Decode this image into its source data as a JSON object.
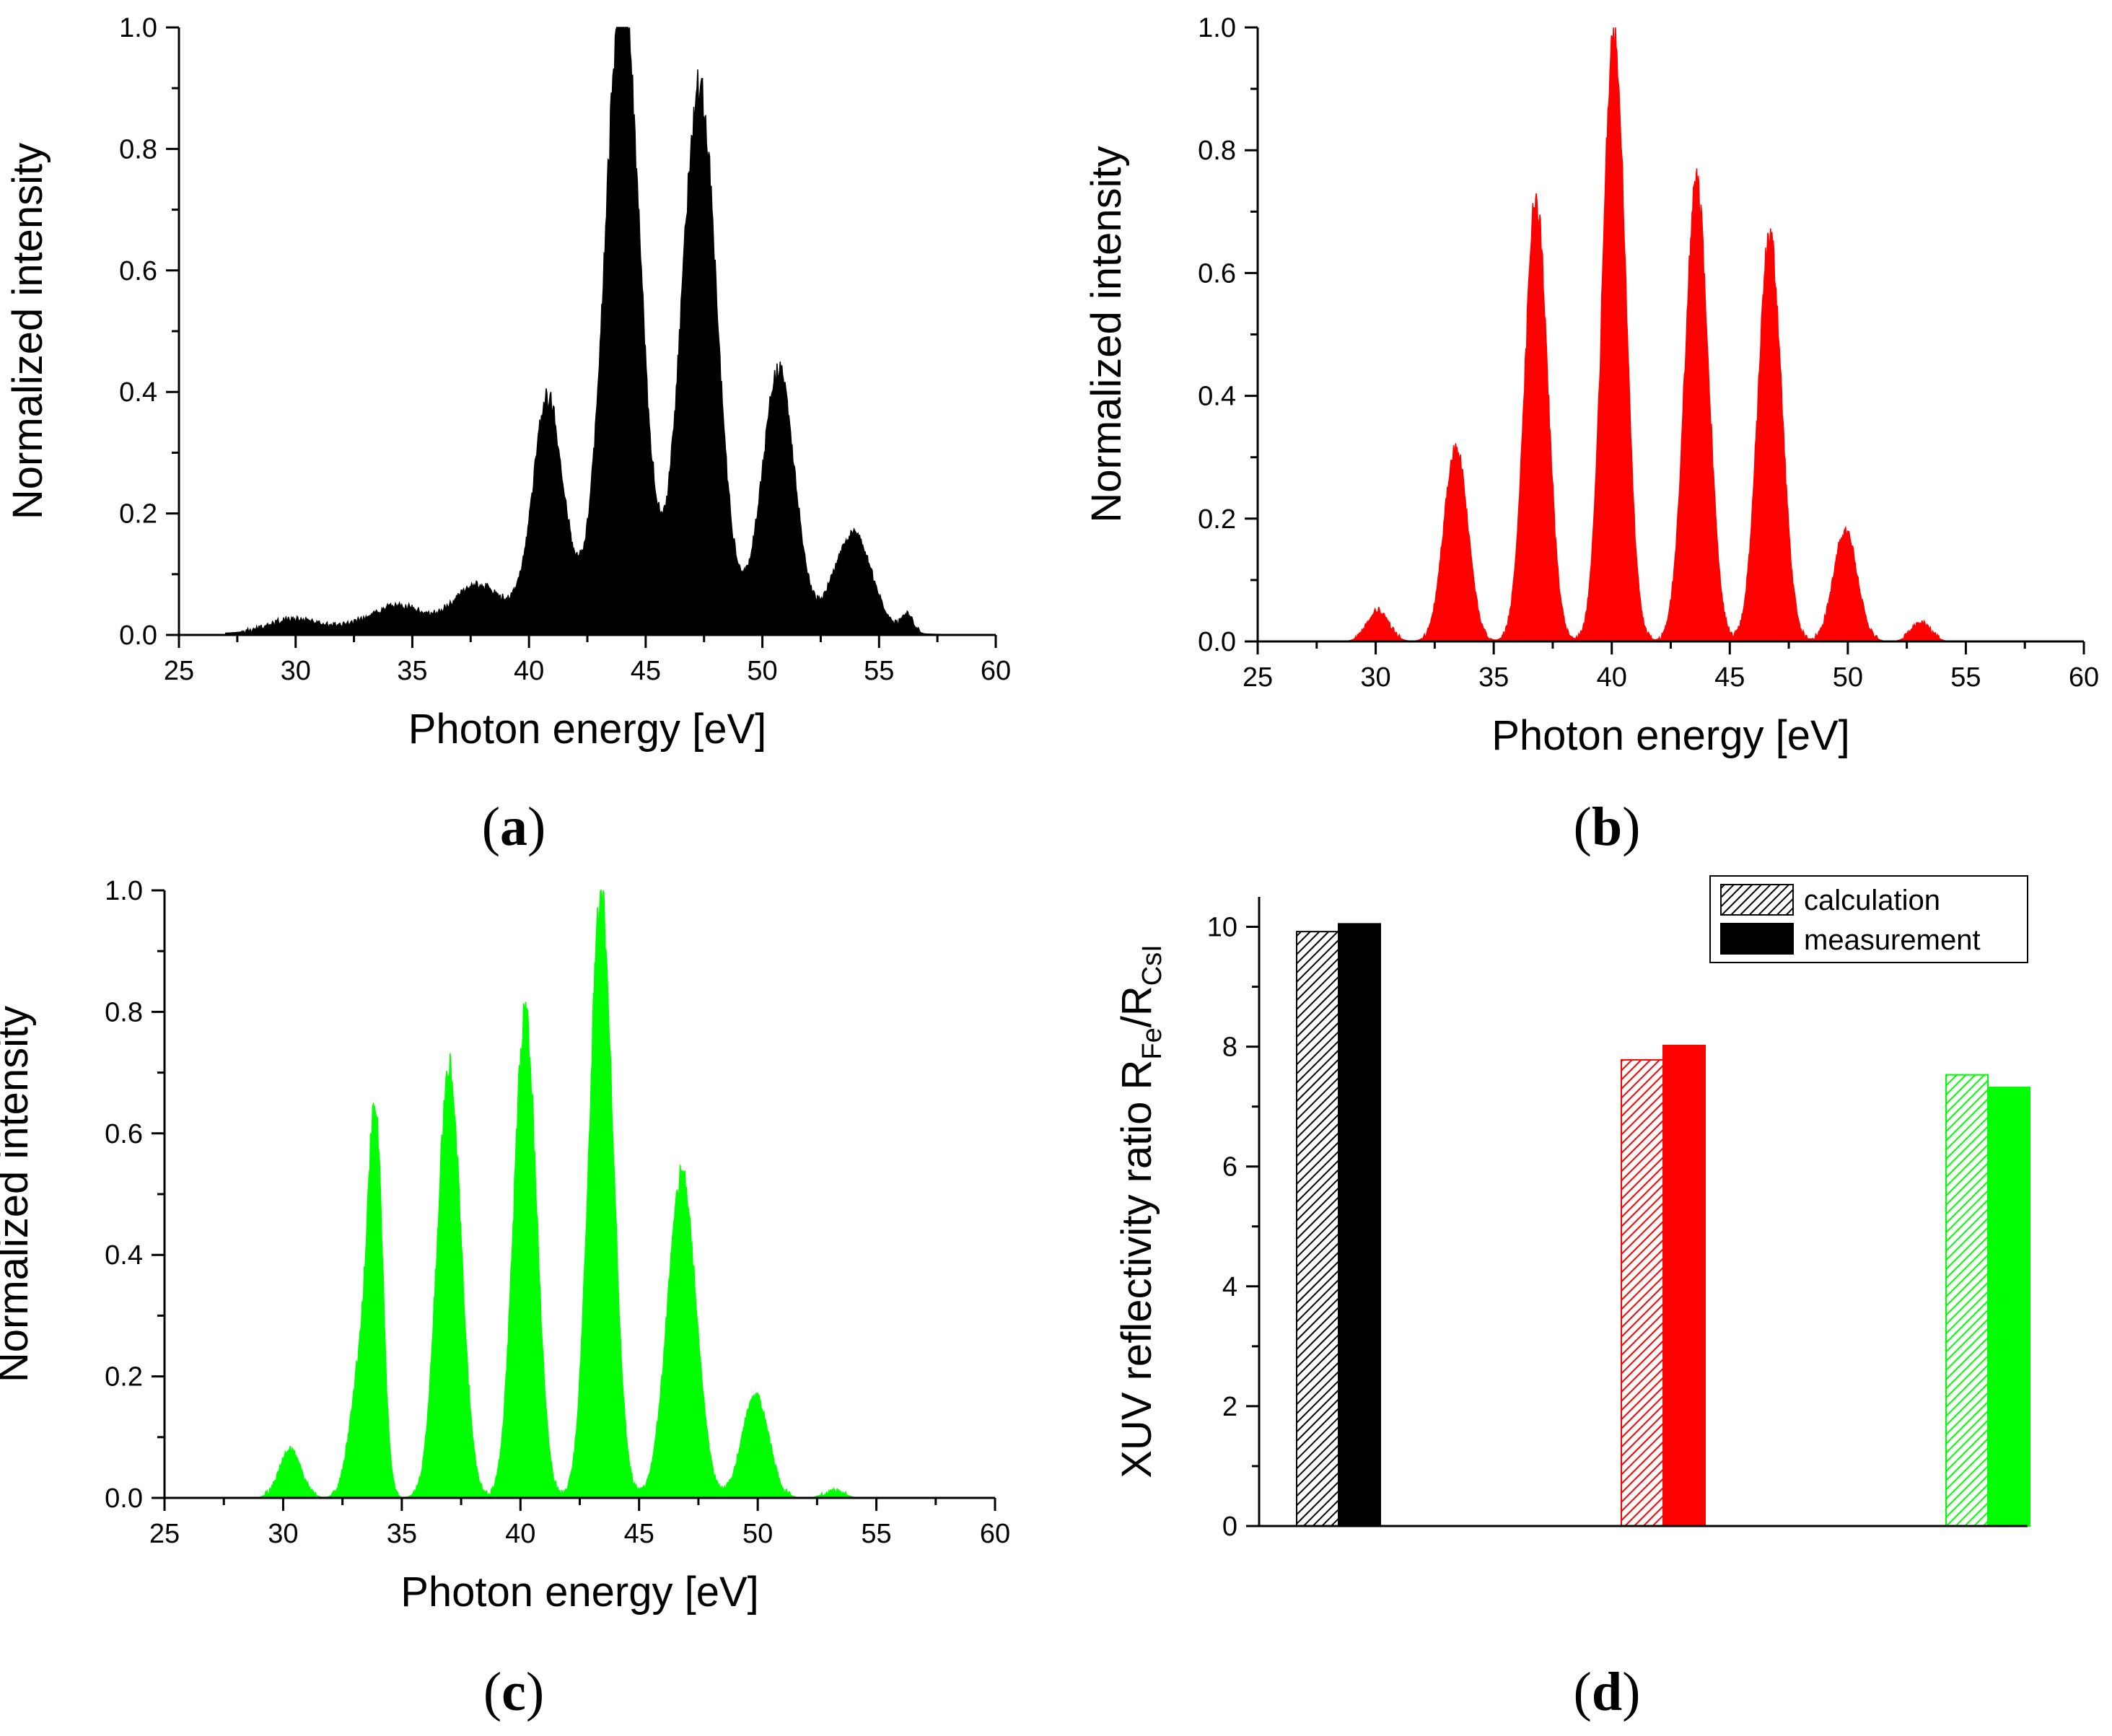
{
  "chart_data": [
    {
      "type": "area",
      "panel": "a",
      "xlabel": "Photon energy [eV]",
      "ylabel": "Normalized intensity",
      "xlim": [
        25,
        60
      ],
      "ylim": [
        0,
        1.0
      ],
      "xticks": [
        "25",
        "30",
        "35",
        "40",
        "45",
        "50",
        "55",
        "60"
      ],
      "yticks": [
        "0.0",
        "0.2",
        "0.4",
        "0.6",
        "0.8",
        "1.0"
      ],
      "color": "#000000",
      "peaks": [
        {
          "x": 29.8,
          "y": 0.018,
          "w": 0.9
        },
        {
          "x": 34.3,
          "y": 0.032,
          "w": 1.0
        },
        {
          "x": 37.7,
          "y": 0.055,
          "w": 0.9
        },
        {
          "x": 40.8,
          "y": 0.34,
          "w": 0.62
        },
        {
          "x": 44.0,
          "y": 0.99,
          "w": 0.72
        },
        {
          "x": 47.3,
          "y": 0.85,
          "w": 0.72
        },
        {
          "x": 50.7,
          "y": 0.41,
          "w": 0.68
        },
        {
          "x": 53.9,
          "y": 0.16,
          "w": 0.8
        }
      ],
      "background": [
        {
          "x": 33.0,
          "y": 0.012,
          "w": 3.5
        },
        {
          "x": 44.5,
          "y": 0.07,
          "w": 4.5
        },
        {
          "x": 56.2,
          "y": 0.03,
          "w": 0.25
        }
      ],
      "x_range": [
        27.0,
        57.6
      ]
    },
    {
      "type": "area",
      "panel": "b",
      "xlabel": "Photon energy [eV]",
      "ylabel": "Normalized intensity",
      "xlim": [
        25,
        60
      ],
      "ylim": [
        0,
        1.0
      ],
      "xticks": [
        "25",
        "30",
        "35",
        "40",
        "45",
        "50",
        "55",
        "60"
      ],
      "yticks": [
        "0.0",
        "0.2",
        "0.4",
        "0.6",
        "0.8",
        "1.0"
      ],
      "color": "#ff0000",
      "peaks": [
        {
          "x": 30.1,
          "y": 0.05,
          "w": 0.45
        },
        {
          "x": 33.4,
          "y": 0.32,
          "w": 0.5
        },
        {
          "x": 36.8,
          "y": 0.72,
          "w": 0.48
        },
        {
          "x": 40.1,
          "y": 0.99,
          "w": 0.48
        },
        {
          "x": 43.6,
          "y": 0.74,
          "w": 0.5
        },
        {
          "x": 46.7,
          "y": 0.66,
          "w": 0.5
        },
        {
          "x": 49.9,
          "y": 0.18,
          "w": 0.5
        },
        {
          "x": 53.1,
          "y": 0.03,
          "w": 0.4
        }
      ],
      "background": [],
      "x_range": [
        28.5,
        55.0
      ]
    },
    {
      "type": "area",
      "panel": "c",
      "xlabel": "Photon energy [eV]",
      "ylabel": "Normalized intensity",
      "xlim": [
        25,
        60
      ],
      "ylim": [
        0,
        1.0
      ],
      "xticks": [
        "25",
        "30",
        "35",
        "40",
        "45",
        "50",
        "55",
        "60"
      ],
      "yticks": [
        "0.0",
        "0.2",
        "0.4",
        "0.6",
        "0.8",
        "1.0"
      ],
      "color": "#00ff00",
      "peaks": [
        {
          "x": 30.3,
          "y": 0.08,
          "w": 0.45
        },
        {
          "x": 33.3,
          "y": 0.22,
          "w": 0.45
        },
        {
          "x": 33.9,
          "y": 0.56,
          "w": 0.3
        },
        {
          "x": 37.0,
          "y": 0.71,
          "w": 0.5
        },
        {
          "x": 40.2,
          "y": 0.79,
          "w": 0.48
        },
        {
          "x": 43.4,
          "y": 0.99,
          "w": 0.5
        },
        {
          "x": 46.8,
          "y": 0.53,
          "w": 0.6
        },
        {
          "x": 49.9,
          "y": 0.17,
          "w": 0.55
        },
        {
          "x": 53.2,
          "y": 0.012,
          "w": 0.4
        }
      ],
      "background": [],
      "x_range": [
        28.5,
        55.0
      ]
    },
    {
      "type": "bar",
      "panel": "d",
      "ylabel": "XUV reflectivity ratio R",
      "ylabel_sub1": "Fe",
      "ylabel_sep": "/R",
      "ylabel_sub2": "CsI",
      "ylim": [
        0,
        10.5
      ],
      "yticks": [
        "0",
        "2",
        "4",
        "6",
        "8",
        "10"
      ],
      "legend": [
        "calculation",
        "measurement"
      ],
      "legend_position": "top-right",
      "groups": [
        {
          "color": "#000000",
          "calculation": 9.92,
          "measurement": 10.05
        },
        {
          "color": "#ff0000",
          "calculation": 7.78,
          "measurement": 8.02
        },
        {
          "color": "#00ff00",
          "calculation": 7.53,
          "measurement": 7.32
        }
      ]
    }
  ],
  "panel_labels": [
    "a",
    "b",
    "c",
    "d"
  ]
}
